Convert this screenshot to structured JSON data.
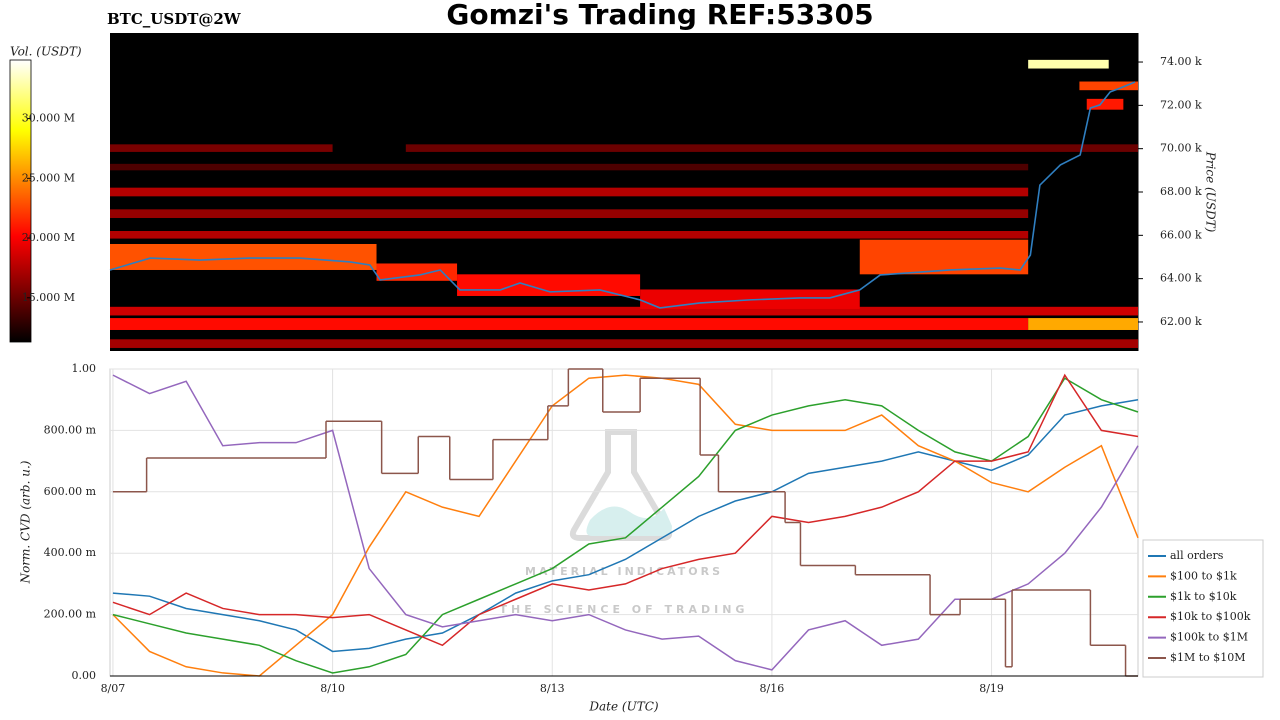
{
  "chart_data": [
    {
      "type": "heatmap",
      "title": "Gomzi's Trading REF:53305",
      "subtitle": "BTC_USDT@2W",
      "colorbar_label": "Vol. (USDT)",
      "clim": [
        11300000,
        34900000
      ],
      "cticks": [
        {
          "value": 15000000,
          "label": "15.000 M"
        },
        {
          "value": 20000000,
          "label": "20.000 M"
        },
        {
          "value": 25000000,
          "label": "25.000 M"
        },
        {
          "value": 30000000,
          "label": "30.000 M"
        }
      ],
      "ylabel": "Price (USDT)",
      "ylim": [
        60660,
        75340
      ],
      "yticks": [
        {
          "value": 62000,
          "label": "62.00 k"
        },
        {
          "value": 64000,
          "label": "64.00 k"
        },
        {
          "value": 66000,
          "label": "66.00 k"
        },
        {
          "value": 68000,
          "label": "68.00 k"
        },
        {
          "value": 70000,
          "label": "70.00 k"
        },
        {
          "value": 72000,
          "label": "72.00 k"
        },
        {
          "value": 74000,
          "label": "74.00 k"
        }
      ],
      "xlim": [
        -0.04,
        14.0
      ],
      "cells": [
        {
          "price": [
            60800,
            61200
          ],
          "x": [
            -0.04,
            14.0
          ],
          "volume": 17000000
        },
        {
          "price": [
            61630,
            62180
          ],
          "x": [
            -0.04,
            12.5
          ],
          "volume": 20500000
        },
        {
          "price": [
            61630,
            62180
          ],
          "x": [
            12.5,
            14.0
          ],
          "volume": 26000000
        },
        {
          "price": [
            62300,
            62700
          ],
          "x": [
            -0.04,
            14.0
          ],
          "volume": 18500000
        },
        {
          "price": [
            69850,
            70200
          ],
          "x": [
            -0.04,
            3.0
          ],
          "volume": 15500000
        },
        {
          "price": [
            69850,
            70200
          ],
          "x": [
            4.0,
            14.0
          ],
          "volume": 15000000
        },
        {
          "price": [
            67800,
            68200
          ],
          "x": [
            -0.04,
            12.5
          ],
          "volume": 17500000
        },
        {
          "price": [
            66800,
            67200
          ],
          "x": [
            -0.04,
            12.5
          ],
          "volume": 16500000
        },
        {
          "price": [
            65850,
            66200
          ],
          "x": [
            -0.04,
            12.5
          ],
          "volume": 17500000
        },
        {
          "price": [
            69000,
            69300
          ],
          "x": [
            -0.04,
            12.5
          ],
          "volume": 14000000
        },
        {
          "price": [
            64400,
            65600
          ],
          "x": [
            -0.04,
            3.6
          ],
          "volume": 23000000
        },
        {
          "price": [
            63900,
            64700
          ],
          "x": [
            3.6,
            4.7
          ],
          "volume": 21500000
        },
        {
          "price": [
            63200,
            64200
          ],
          "x": [
            4.7,
            7.2
          ],
          "volume": 20500000
        },
        {
          "price": [
            62600,
            63500
          ],
          "x": [
            7.2,
            10.2
          ],
          "volume": 19500000
        },
        {
          "price": [
            64200,
            65800
          ],
          "x": [
            10.2,
            12.5
          ],
          "volume": 22500000
        },
        {
          "price": [
            71800,
            72300
          ],
          "x": [
            13.3,
            13.8
          ],
          "volume": 21000000
        },
        {
          "price": [
            72700,
            73100
          ],
          "x": [
            13.2,
            14.0
          ],
          "volume": 22500000
        },
        {
          "price": [
            73700,
            74100
          ],
          "x": [
            12.5,
            13.6
          ],
          "volume": 33000000
        }
      ],
      "price_line": {
        "color": "#2f7fc1",
        "x": [
          -0.04,
          0.51,
          1.19,
          1.87,
          2.55,
          3.24,
          3.51,
          3.65,
          4.19,
          4.47,
          4.74,
          5.29,
          5.56,
          5.97,
          6.65,
          7.2,
          7.47,
          8.02,
          8.7,
          9.38,
          9.79,
          10.2,
          10.48,
          11.43,
          12.12,
          12.39,
          12.53,
          12.66,
          12.94,
          13.21,
          13.35,
          13.48,
          13.62,
          13.76,
          13.96
        ],
        "values": [
          64400,
          64950,
          64860,
          64950,
          64950,
          64770,
          64630,
          63940,
          64170,
          64400,
          63480,
          63480,
          63800,
          63390,
          63480,
          63020,
          62650,
          62880,
          63020,
          63110,
          63110,
          63480,
          64170,
          64400,
          64490,
          64400,
          65090,
          68320,
          69250,
          69710,
          71880,
          72020,
          72620,
          72800,
          73080
        ]
      }
    },
    {
      "type": "line",
      "xlabel": "Date (UTC)",
      "ylabel": "Norm. CVD (arb. u.)",
      "xlim": [
        -0.04,
        14.0
      ],
      "xticks": [
        {
          "value": 0,
          "label": "8/07"
        },
        {
          "value": 3,
          "label": "8/10"
        },
        {
          "value": 6,
          "label": "8/13"
        },
        {
          "value": 9,
          "label": "8/16"
        },
        {
          "value": 12,
          "label": "8/19"
        }
      ],
      "ylim": [
        0,
        1.0
      ],
      "yticks": [
        {
          "value": 0,
          "label": "0.00"
        },
        {
          "value": 0.2,
          "label": "200.00 m"
        },
        {
          "value": 0.4,
          "label": "400.00 m"
        },
        {
          "value": 0.6,
          "label": "600.00 m"
        },
        {
          "value": 0.8,
          "label": "800.00 m"
        },
        {
          "value": 1.0,
          "label": "1.00"
        }
      ],
      "grid": true,
      "legend": "right",
      "watermark": [
        "MATERIAL INDICATORS",
        "THE SCIENCE OF TRADING"
      ],
      "x": [
        0,
        0.5,
        1,
        1.5,
        2,
        2.5,
        3,
        3.5,
        4,
        4.5,
        5,
        5.5,
        6,
        6.5,
        7,
        7.5,
        8,
        8.5,
        9,
        9.5,
        10,
        10.5,
        11,
        11.5,
        12,
        12.5,
        13,
        13.5,
        14
      ],
      "series": [
        {
          "name": "all orders",
          "color": "#1f77b4",
          "values": [
            0.27,
            0.26,
            0.22,
            0.2,
            0.18,
            0.15,
            0.08,
            0.09,
            0.12,
            0.14,
            0.2,
            0.27,
            0.31,
            0.33,
            0.38,
            0.45,
            0.52,
            0.57,
            0.6,
            0.66,
            0.68,
            0.7,
            0.73,
            0.7,
            0.67,
            0.72,
            0.85,
            0.88,
            0.9
          ]
        },
        {
          "name": "$100 to $1k",
          "color": "#ff7f0e",
          "values": [
            0.2,
            0.08,
            0.03,
            0.01,
            0.0,
            0.1,
            0.2,
            0.42,
            0.6,
            0.55,
            0.52,
            0.7,
            0.88,
            0.97,
            0.98,
            0.97,
            0.95,
            0.82,
            0.8,
            0.8,
            0.8,
            0.85,
            0.75,
            0.7,
            0.63,
            0.6,
            0.68,
            0.75,
            0.45
          ]
        },
        {
          "name": "$1k to $10k",
          "color": "#2ca02c",
          "values": [
            0.2,
            0.17,
            0.14,
            0.12,
            0.1,
            0.05,
            0.01,
            0.03,
            0.07,
            0.2,
            0.25,
            0.3,
            0.35,
            0.43,
            0.45,
            0.55,
            0.65,
            0.8,
            0.85,
            0.88,
            0.9,
            0.88,
            0.8,
            0.73,
            0.7,
            0.78,
            0.97,
            0.9,
            0.86
          ]
        },
        {
          "name": "$10k to $100k",
          "color": "#d62728",
          "values": [
            0.24,
            0.2,
            0.27,
            0.22,
            0.2,
            0.2,
            0.19,
            0.2,
            0.15,
            0.1,
            0.2,
            0.25,
            0.3,
            0.28,
            0.3,
            0.35,
            0.38,
            0.4,
            0.52,
            0.5,
            0.52,
            0.55,
            0.6,
            0.7,
            0.7,
            0.73,
            0.98,
            0.8,
            0.78
          ]
        },
        {
          "name": "$100k to $1M",
          "color": "#9467bd",
          "values": [
            0.98,
            0.92,
            0.96,
            0.75,
            0.76,
            0.76,
            0.8,
            0.35,
            0.2,
            0.16,
            0.18,
            0.2,
            0.18,
            0.2,
            0.15,
            0.12,
            0.13,
            0.05,
            0.02,
            0.15,
            0.18,
            0.1,
            0.12,
            0.25,
            0.25,
            0.3,
            0.4,
            0.55,
            0.75
          ]
        },
        {
          "name": "$1M to $10M",
          "color": "#8c564b",
          "step": "post",
          "x": [
            0,
            0.46,
            2.91,
            3.67,
            4.17,
            4.6,
            5.19,
            5.94,
            6.22,
            6.69,
            7.2,
            8.02,
            8.27,
            9.18,
            9.39,
            10.14,
            11.16,
            11.57,
            12.19,
            12.28,
            13.35,
            13.83
          ],
          "values": [
            0.6,
            0.71,
            0.83,
            0.66,
            0.78,
            0.64,
            0.77,
            0.88,
            1.0,
            0.86,
            0.97,
            0.72,
            0.6,
            0.5,
            0.36,
            0.33,
            0.2,
            0.25,
            0.03,
            0.28,
            0.1,
            0.0
          ]
        }
      ]
    }
  ]
}
